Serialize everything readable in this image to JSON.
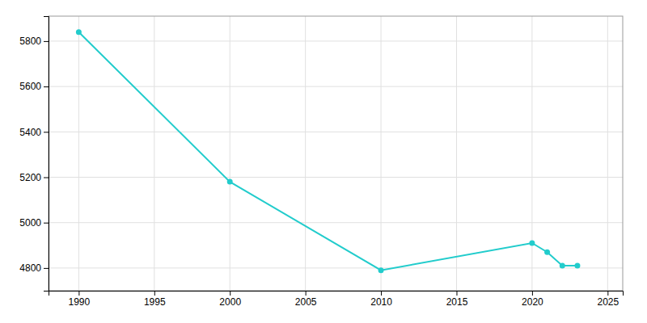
{
  "chart_data": {
    "type": "line",
    "x": [
      1990,
      2000,
      2010,
      2020,
      2021,
      2022,
      2023
    ],
    "values": [
      5840,
      5180,
      4790,
      4910,
      4870,
      4810,
      4810
    ],
    "color": "#22CCCC",
    "marker": "circle",
    "xlim": [
      1988,
      2026
    ],
    "ylim": [
      4700,
      5910
    ],
    "xticks": [
      1990,
      1995,
      2000,
      2005,
      2010,
      2015,
      2020,
      2025
    ],
    "yticks": [
      4800,
      5000,
      5200,
      5400,
      5600,
      5800
    ],
    "grid": true
  }
}
